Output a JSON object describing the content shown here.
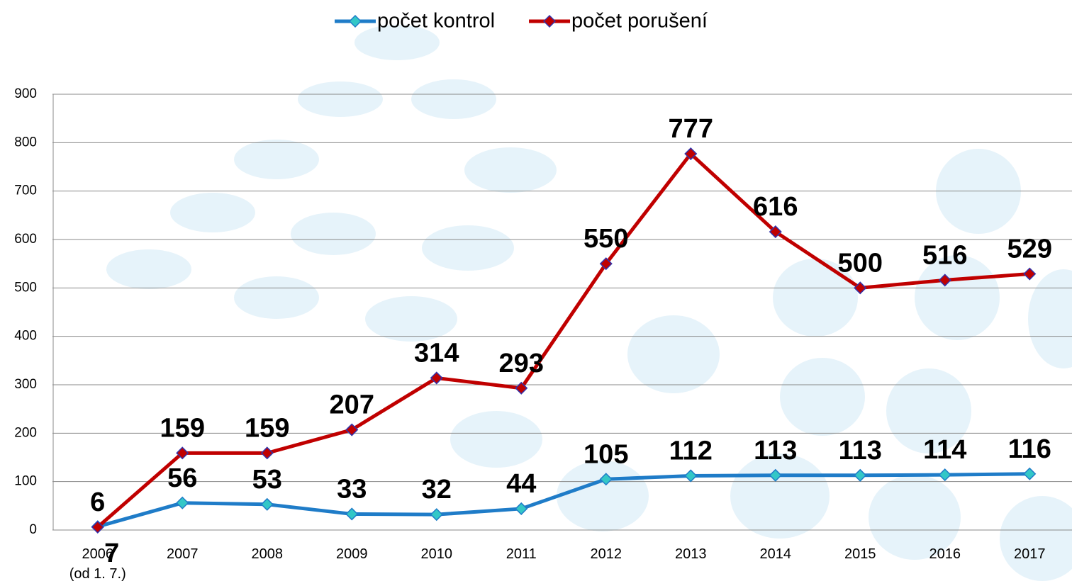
{
  "chart_data": {
    "type": "line",
    "categories": [
      "2006\n(od 1. 7.)",
      "2007",
      "2008",
      "2009",
      "2010",
      "2011",
      "2012",
      "2013",
      "2014",
      "2015",
      "2016",
      "2017"
    ],
    "series": [
      {
        "name": "počet kontrol",
        "color": "#1f7cc8",
        "marker_color": "#33c7c7",
        "values": [
          7,
          56,
          53,
          33,
          32,
          44,
          105,
          112,
          113,
          113,
          114,
          116
        ]
      },
      {
        "name": "počet porušení",
        "color": "#c00000",
        "marker_color": "#c00000",
        "values": [
          6,
          159,
          159,
          207,
          314,
          293,
          550,
          777,
          616,
          500,
          516,
          529
        ]
      }
    ],
    "ylim": [
      0,
      900
    ],
    "yticks": [
      0,
      100,
      200,
      300,
      400,
      500,
      600,
      700,
      800,
      900
    ],
    "grid": true,
    "legend": "top"
  }
}
